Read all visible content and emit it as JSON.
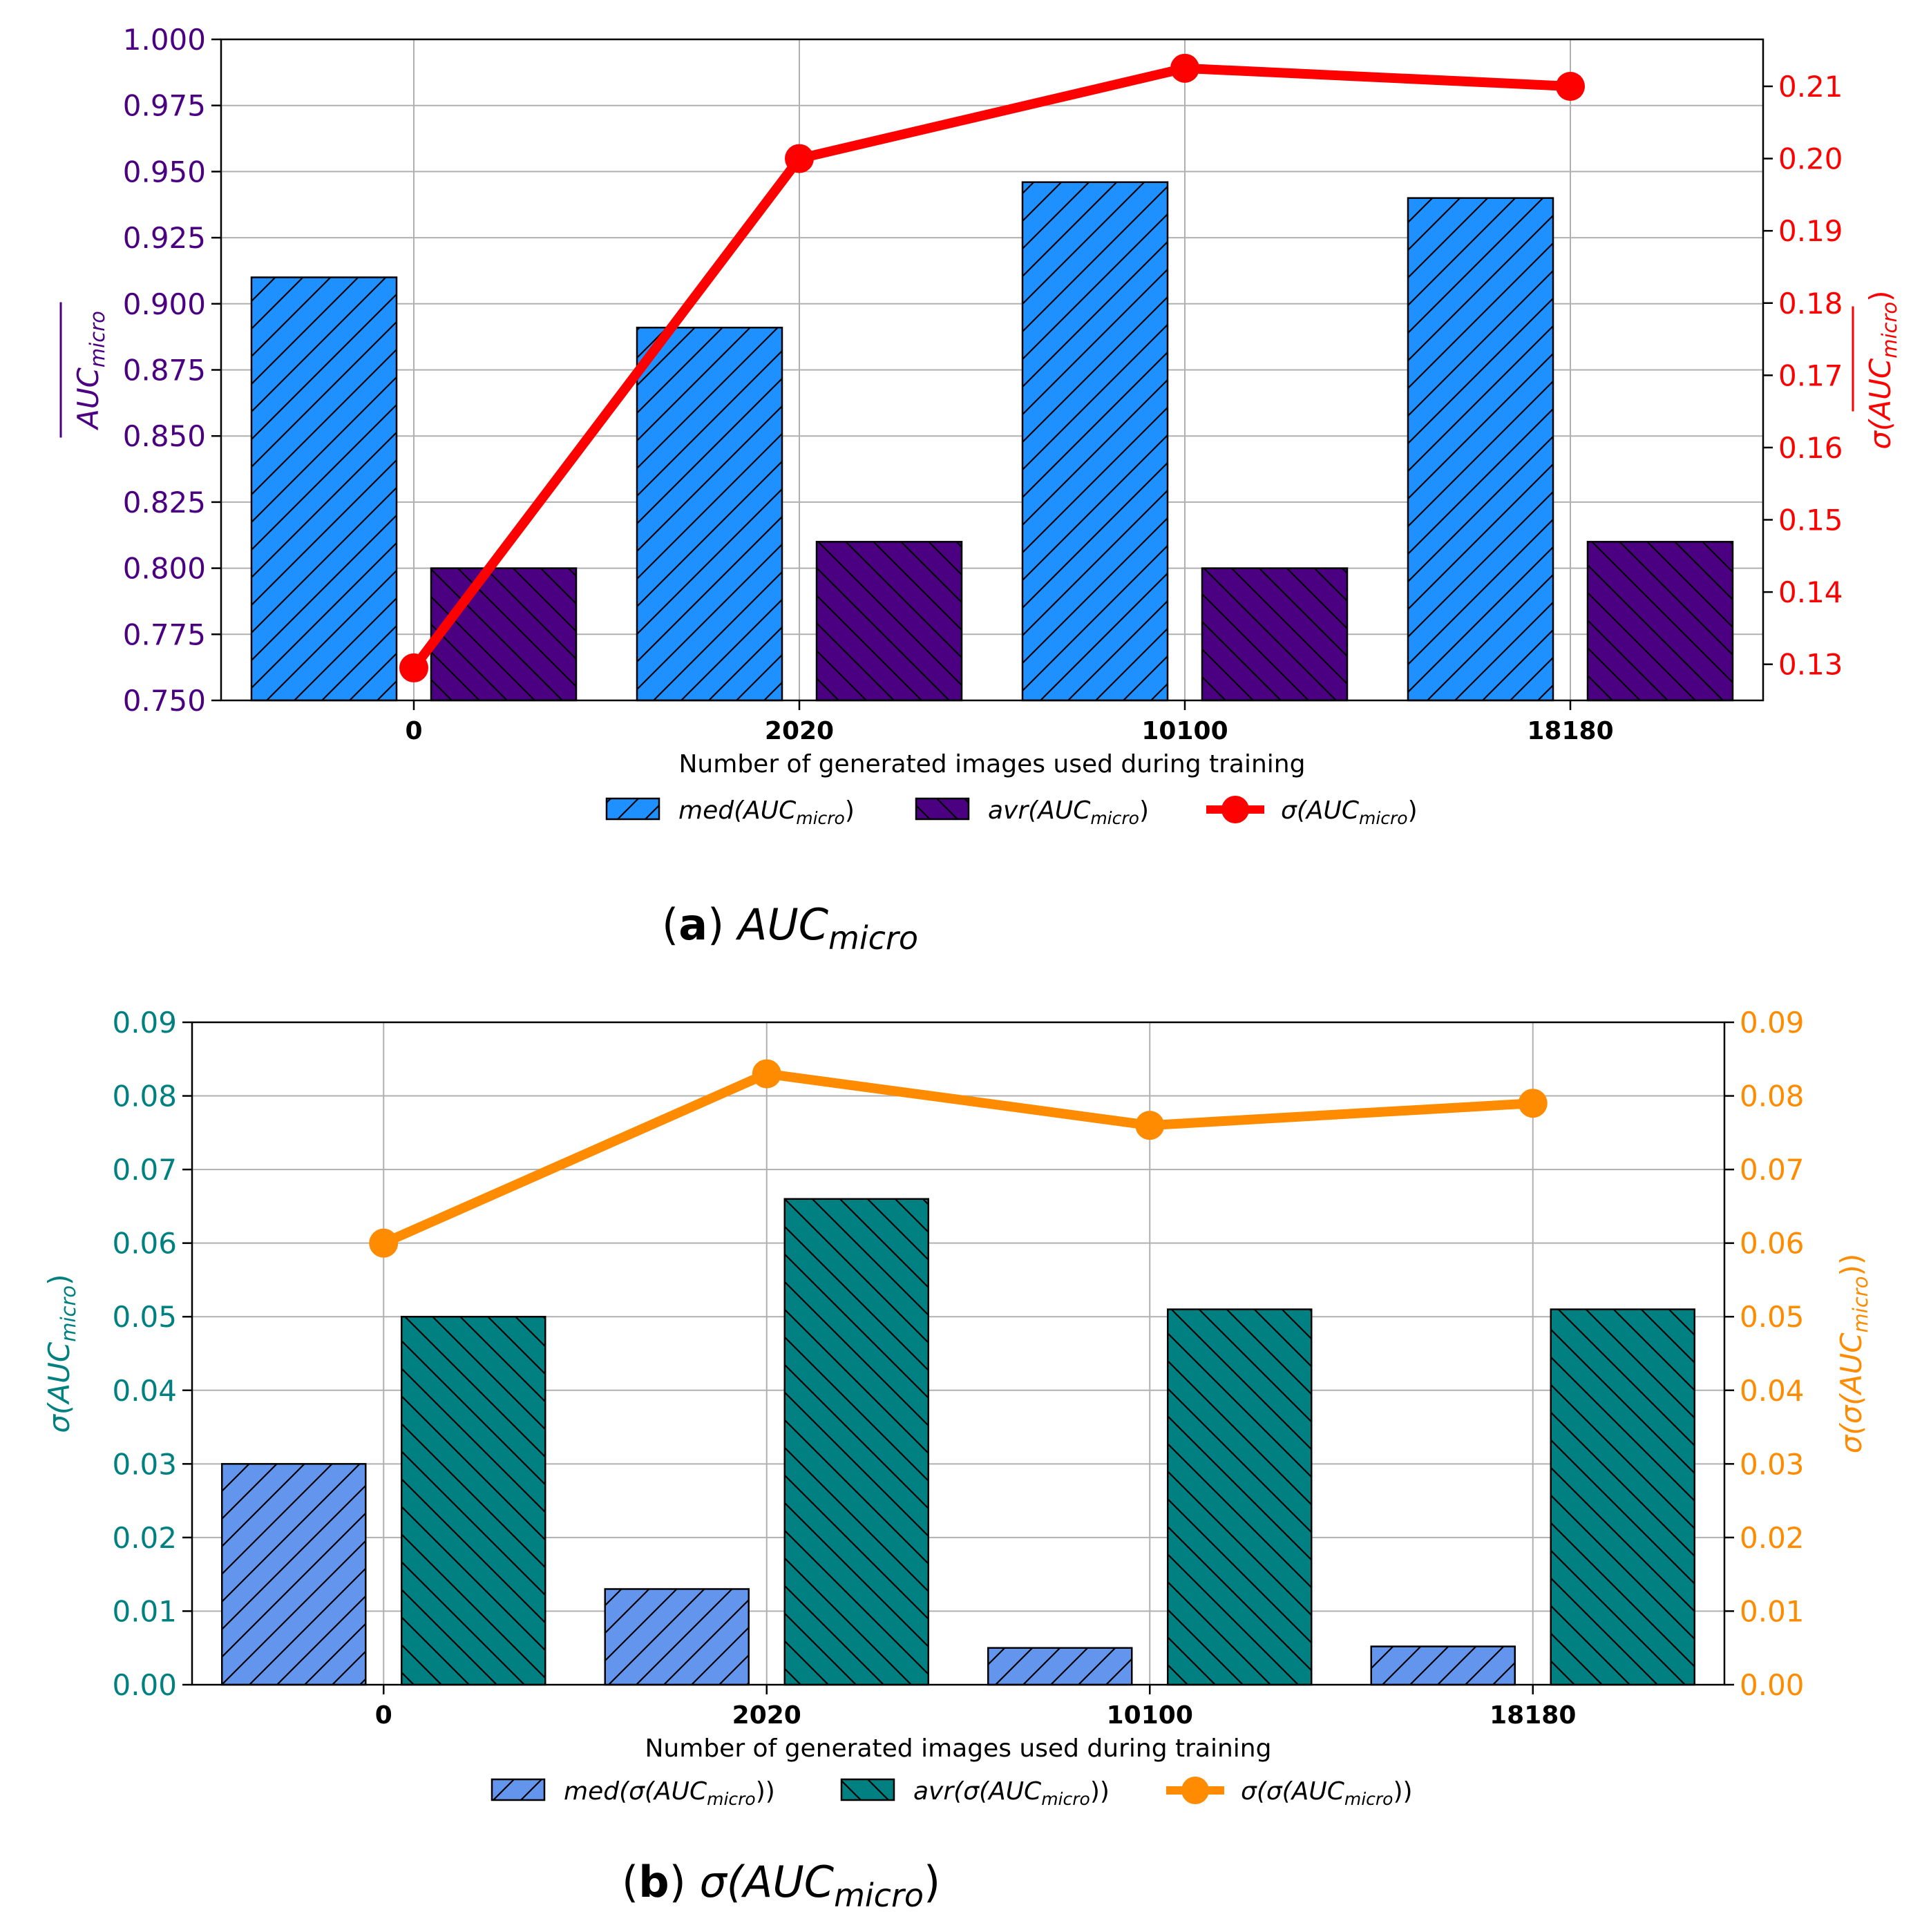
{
  "chart_data": [
    {
      "type": "bar",
      "panel_label": "a",
      "caption": "AUC",
      "caption_sub": "micro",
      "xlabel": "Number of generated images used during training",
      "categories": [
        "0",
        "2020",
        "10100",
        "18180"
      ],
      "ylabel_left": "AUC",
      "ylabel_left_sub": "micro",
      "ylabel_right": "σ(AUC",
      "ylabel_right_sub": "micro",
      "ylabel_right_end": ")",
      "ylim_left": [
        0.75,
        1.0
      ],
      "yticks_left": [
        "0.750",
        "0.775",
        "0.800",
        "0.825",
        "0.850",
        "0.875",
        "0.900",
        "0.925",
        "0.950",
        "0.975",
        "1.000"
      ],
      "ylim_right": [
        0.125,
        0.2165
      ],
      "yticks_right": [
        "0.13",
        "0.14",
        "0.15",
        "0.16",
        "0.17",
        "0.18",
        "0.19",
        "0.20",
        "0.21"
      ],
      "grid": true,
      "legend_position": "bottom-center",
      "colors": {
        "left_axis": "#4b0082",
        "right_axis": "#ff0000"
      },
      "series": [
        {
          "name": "med(AUC",
          "name_sub": "micro",
          "name_end": ")",
          "kind": "bar",
          "axis": "left",
          "hatch": "/",
          "color": "#1e90ff",
          "values": [
            0.91,
            0.891,
            0.946,
            0.94
          ]
        },
        {
          "name": "avr(AUC",
          "name_sub": "micro",
          "name_end": ")",
          "kind": "bar",
          "axis": "left",
          "hatch": "\\",
          "color": "#4b0082",
          "values": [
            0.8,
            0.81,
            0.8,
            0.81
          ]
        },
        {
          "name": "σ(AUC",
          "name_sub": "micro",
          "name_end": ")",
          "kind": "line",
          "axis": "right",
          "color": "#ff0000",
          "values": [
            0.1295,
            0.2,
            0.2125,
            0.21
          ]
        }
      ]
    },
    {
      "type": "bar",
      "panel_label": "b",
      "caption": "σ(AUC",
      "caption_sub": "micro",
      "caption_end": ")",
      "xlabel": "Number of generated images used during training",
      "categories": [
        "0",
        "2020",
        "10100",
        "18180"
      ],
      "ylabel_left": "σ(AUC",
      "ylabel_left_sub": "micro",
      "ylabel_left_end": ")",
      "ylabel_right": "σ(σ(AUC",
      "ylabel_right_sub": "micro",
      "ylabel_right_end": "))",
      "ylim_left": [
        0.0,
        0.09
      ],
      "yticks_left": [
        "0.00",
        "0.01",
        "0.02",
        "0.03",
        "0.04",
        "0.05",
        "0.06",
        "0.07",
        "0.08",
        "0.09"
      ],
      "ylim_right": [
        0.0,
        0.09
      ],
      "yticks_right": [
        "0.00",
        "0.01",
        "0.02",
        "0.03",
        "0.04",
        "0.05",
        "0.06",
        "0.07",
        "0.08",
        "0.09"
      ],
      "grid": true,
      "legend_position": "bottom-center",
      "colors": {
        "left_axis": "#008080",
        "right_axis": "#ff8c00"
      },
      "series": [
        {
          "name": "med(σ(AUC",
          "name_sub": "micro",
          "name_end": "))",
          "kind": "bar",
          "axis": "left",
          "hatch": "/",
          "color": "#6495ed",
          "values": [
            0.03,
            0.013,
            0.005,
            0.0052
          ]
        },
        {
          "name": "avr(σ(AUC",
          "name_sub": "micro",
          "name_end": "))",
          "kind": "bar",
          "axis": "left",
          "hatch": "\\",
          "color": "#008080",
          "values": [
            0.05,
            0.066,
            0.051,
            0.051
          ]
        },
        {
          "name": "σ(σ(AUC",
          "name_sub": "micro",
          "name_end": "))",
          "kind": "line",
          "axis": "right",
          "color": "#ff8c00",
          "values": [
            0.06,
            0.083,
            0.076,
            0.079
          ]
        }
      ]
    }
  ]
}
